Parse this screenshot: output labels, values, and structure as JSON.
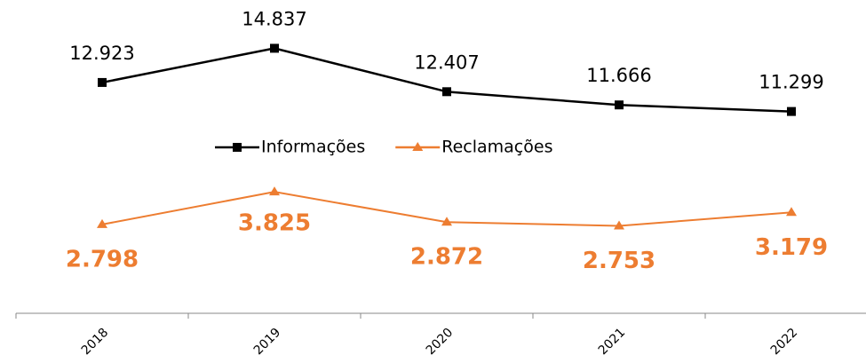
{
  "chart_data": {
    "type": "line",
    "categories": [
      "2018",
      "2019",
      "2020",
      "2021",
      "2022"
    ],
    "series": [
      {
        "name": "Informações",
        "color": "#000000",
        "marker": "square",
        "values": [
          12923,
          14837,
          12407,
          11666,
          11299
        ],
        "value_labels": [
          "12.923",
          "14.837",
          "12.407",
          "11.666",
          "11.299"
        ]
      },
      {
        "name": "Reclamações",
        "color": "#ed7d31",
        "marker": "triangle",
        "axis": "y2",
        "values": [
          2798,
          3825,
          2872,
          2753,
          3179
        ],
        "value_labels": [
          "2.798",
          "3.825",
          "2.872",
          "2.753",
          "3.179"
        ]
      }
    ],
    "ylim": [
      0,
      16000
    ],
    "y2lim": [
      0,
      9000
    ],
    "grid": false,
    "legend": "center"
  }
}
